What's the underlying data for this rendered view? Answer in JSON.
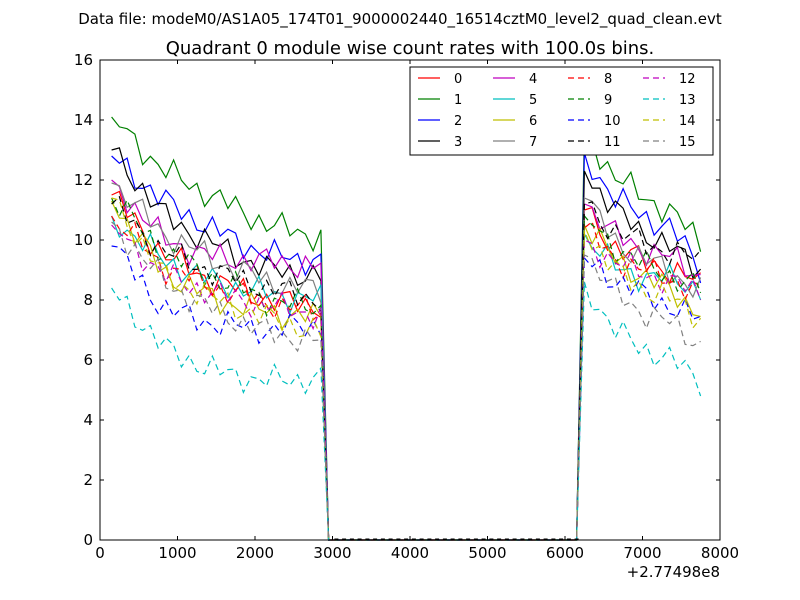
{
  "chart_data": {
    "type": "line",
    "suptitle": "Data file: modeM0/AS1A05_174T01_9000002440_16514cztM0_level2_quad_clean.evt",
    "title": "Quadrant 0 module wise count rates with 100.0s bins.",
    "xlabel": "",
    "ylabel": "",
    "xlim": [
      0,
      8000
    ],
    "ylim": [
      0,
      16
    ],
    "x_ticks": [
      0,
      1000,
      2000,
      3000,
      4000,
      5000,
      6000,
      7000,
      8000
    ],
    "x_tick_labels": [
      "0",
      "1000",
      "2000",
      "3000",
      "4000",
      "5000",
      "6000",
      "7000",
      "8000"
    ],
    "y_ticks": [
      0,
      2,
      4,
      6,
      8,
      10,
      12,
      14,
      16
    ],
    "y_tick_labels": [
      "0",
      "2",
      "4",
      "6",
      "8",
      "10",
      "12",
      "14",
      "16"
    ],
    "x_offset_label": "+2.77498e8",
    "grid": false,
    "legend_position": "top-right",
    "legend_columns": 4,
    "segments": [
      {
        "x_start": 150,
        "x_end": 2850
      },
      {
        "x_start": 6250,
        "x_end": 7750
      }
    ],
    "gap_points_x": [
      3050,
      3150,
      3250,
      3350,
      3450,
      3550,
      3650,
      3750,
      3850,
      3950,
      4050,
      4150,
      4250,
      4350,
      4450,
      4550,
      4650,
      4750,
      4850,
      4950,
      5050,
      5150,
      5250,
      5350,
      5450,
      5550,
      5650,
      5750,
      5850,
      5950,
      6050,
      6150
    ],
    "series": [
      {
        "name": "0",
        "color": "#ff0000",
        "dash": "solid",
        "segA": [
          11.5,
          9.5,
          8.6,
          8.0,
          7.8
        ],
        "segB": [
          11.0,
          9.8,
          9.3,
          9.0,
          8.5
        ]
      },
      {
        "name": "1",
        "color": "#008000",
        "dash": "solid",
        "segA": [
          14.1,
          12.3,
          11.4,
          10.5,
          10.1
        ],
        "segB": [
          13.6,
          12.2,
          11.4,
          11.0,
          9.8
        ]
      },
      {
        "name": "2",
        "color": "#0000ff",
        "dash": "solid",
        "segA": [
          12.8,
          11.3,
          10.3,
          9.5,
          9.3
        ],
        "segB": [
          12.9,
          11.4,
          10.8,
          10.4,
          9.0
        ]
      },
      {
        "name": "3",
        "color": "#000000",
        "dash": "solid",
        "segA": [
          13.0,
          10.8,
          9.8,
          9.0,
          8.8
        ],
        "segB": [
          12.3,
          11.0,
          10.3,
          9.7,
          9.0
        ]
      },
      {
        "name": "4",
        "color": "#bf00bf",
        "dash": "solid",
        "segA": [
          12.0,
          10.0,
          9.4,
          9.3,
          9.1
        ],
        "segB": [
          11.2,
          10.2,
          9.7,
          9.4,
          8.8
        ]
      },
      {
        "name": "5",
        "color": "#00bfbf",
        "dash": "solid",
        "segA": [
          10.8,
          9.3,
          8.6,
          8.2,
          8.0
        ],
        "segB": [
          10.2,
          9.1,
          8.8,
          8.7,
          8.4
        ]
      },
      {
        "name": "6",
        "color": "#bfbf00",
        "dash": "solid",
        "segA": [
          11.3,
          8.9,
          8.0,
          7.6,
          7.4
        ],
        "segB": [
          10.5,
          9.4,
          8.8,
          8.3,
          7.6
        ]
      },
      {
        "name": "7",
        "color": "#808080",
        "dash": "solid",
        "segA": [
          11.9,
          10.2,
          9.3,
          8.6,
          8.3
        ],
        "segB": [
          11.4,
          10.0,
          9.4,
          8.9,
          8.3
        ]
      },
      {
        "name": "8",
        "color": "#ff0000",
        "dash": "dashed",
        "segA": [
          10.8,
          9.1,
          8.4,
          7.9,
          7.6
        ],
        "segB": [
          10.4,
          9.4,
          9.0,
          8.7,
          8.2
        ]
      },
      {
        "name": "9",
        "color": "#008000",
        "dash": "dashed",
        "segA": [
          11.4,
          9.6,
          8.7,
          8.0,
          7.7
        ],
        "segB": [
          10.8,
          9.8,
          9.2,
          8.8,
          8.4
        ]
      },
      {
        "name": "10",
        "color": "#0000ff",
        "dash": "dashed",
        "segA": [
          9.8,
          7.7,
          7.2,
          7.0,
          7.2
        ],
        "segB": [
          9.4,
          8.7,
          8.2,
          7.8,
          7.3
        ]
      },
      {
        "name": "11",
        "color": "#000000",
        "dash": "dashed",
        "segA": [
          11.2,
          9.6,
          8.9,
          8.4,
          8.0
        ],
        "segB": [
          11.2,
          10.3,
          9.9,
          9.6,
          9.3
        ]
      },
      {
        "name": "12",
        "color": "#bf00bf",
        "dash": "dashed",
        "segA": [
          10.5,
          8.8,
          8.2,
          7.8,
          7.5
        ],
        "segB": [
          10.0,
          9.3,
          8.9,
          8.6,
          8.2
        ]
      },
      {
        "name": "13",
        "color": "#00bfbf",
        "dash": "dashed",
        "segA": [
          8.4,
          6.4,
          5.6,
          5.3,
          5.4
        ],
        "segB": [
          8.6,
          7.0,
          6.4,
          6.0,
          5.3
        ]
      },
      {
        "name": "14",
        "color": "#bfbf00",
        "dash": "dashed",
        "segA": [
          11.4,
          8.8,
          8.0,
          7.4,
          6.9
        ],
        "segB": [
          10.3,
          9.0,
          8.4,
          8.0,
          7.4
        ]
      },
      {
        "name": "15",
        "color": "#808080",
        "dash": "dashed",
        "segA": [
          10.6,
          8.6,
          7.6,
          6.9,
          6.6
        ],
        "segB": [
          9.5,
          8.3,
          7.6,
          7.2,
          6.5
        ]
      }
    ]
  }
}
